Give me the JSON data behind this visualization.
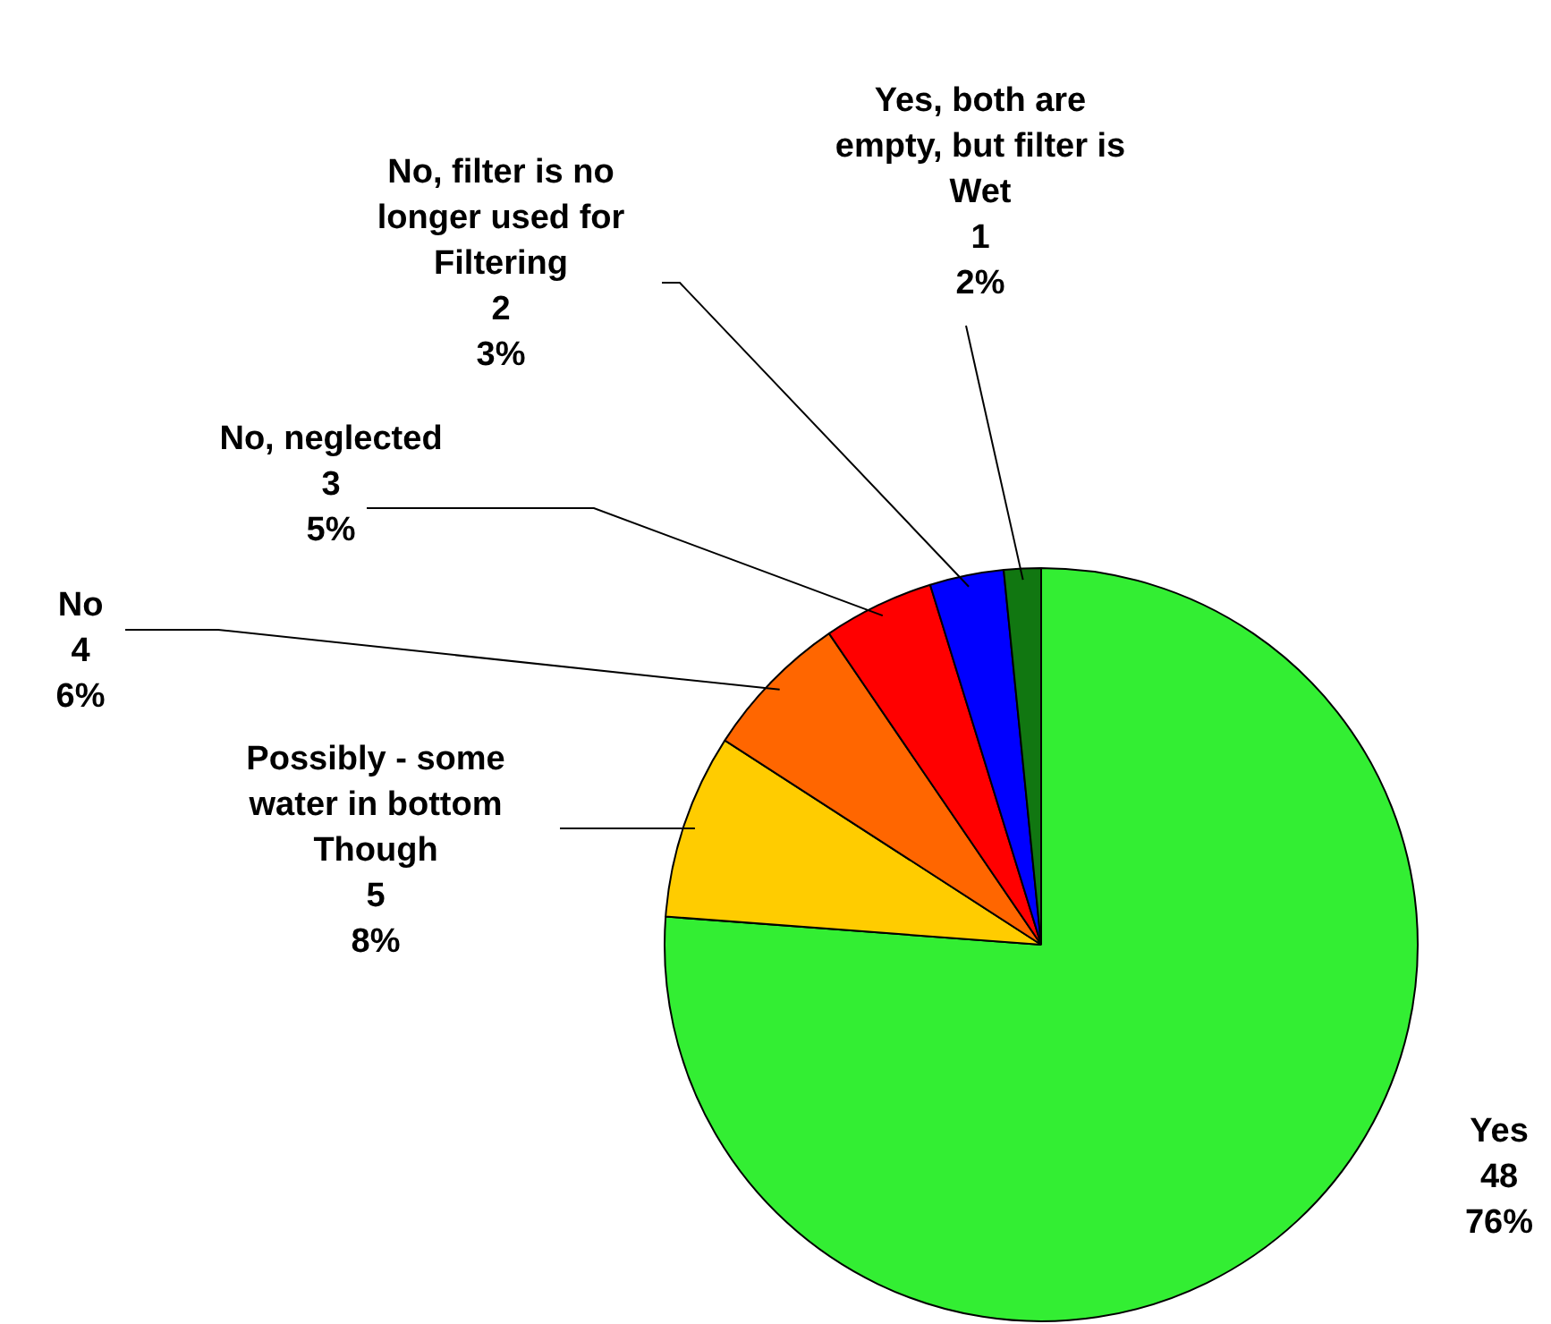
{
  "chart_data": {
    "type": "pie",
    "categories": [
      "Yes",
      "Possibly - some water in bottom Though",
      "No",
      "No, neglected",
      "No, filter is no longer used for Filtering",
      "Yes, both are empty, but filter is Wet"
    ],
    "values": [
      48,
      5,
      4,
      3,
      2,
      1
    ],
    "colors": [
      "#33ee33",
      "#ffcc00",
      "#ff6600",
      "#ff0000",
      "#0000ff",
      "#117711"
    ],
    "value_labels": [
      "48\n76%",
      "5\n8%",
      "4\n6%",
      "3\n5%",
      "2\n3%",
      "1\n2%"
    ]
  }
}
